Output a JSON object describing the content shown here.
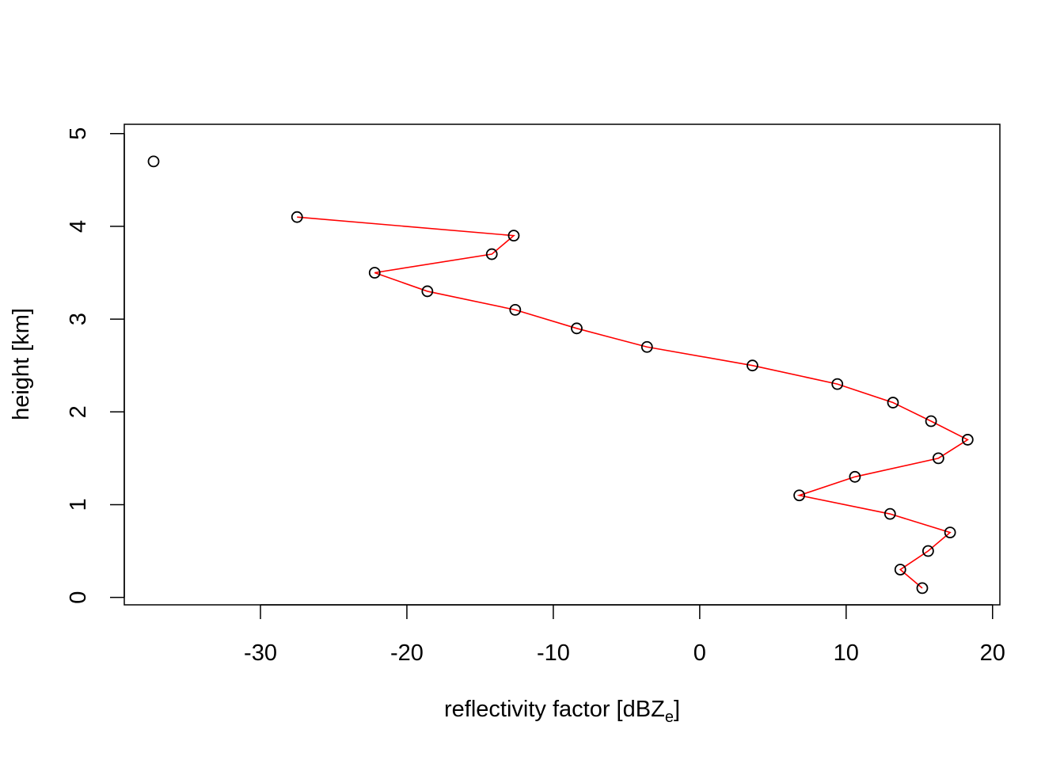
{
  "chart_data": {
    "type": "scatter",
    "xlabel": "reflectivity factor [dBZ",
    "xlabel_subscript": "e",
    "xlabel_suffix": "]",
    "ylabel": "height [km]",
    "xlim": [
      -39.3,
      20.5
    ],
    "ylim": [
      -0.08,
      5.1
    ],
    "x_ticks": [
      -30,
      -20,
      -10,
      0,
      10,
      20
    ],
    "x_tick_labels": [
      "-30",
      "-20",
      "-10",
      "0",
      "10",
      "20"
    ],
    "y_ticks": [
      0,
      1,
      2,
      3,
      4,
      5
    ],
    "y_tick_labels": [
      "0",
      "1",
      "2",
      "3",
      "4",
      "5"
    ],
    "grid": false,
    "line_color": "#ff0000",
    "point_color": "#000000",
    "series": [
      {
        "points": [
          {
            "x": 15.2,
            "y": 0.1
          },
          {
            "x": 13.7,
            "y": 0.3
          },
          {
            "x": 15.6,
            "y": 0.5
          },
          {
            "x": 17.1,
            "y": 0.7
          },
          {
            "x": 13.0,
            "y": 0.9
          },
          {
            "x": 6.8,
            "y": 1.1
          },
          {
            "x": 10.6,
            "y": 1.3
          },
          {
            "x": 16.3,
            "y": 1.5
          },
          {
            "x": 18.3,
            "y": 1.7
          },
          {
            "x": 15.8,
            "y": 1.9
          },
          {
            "x": 13.2,
            "y": 2.1
          },
          {
            "x": 9.4,
            "y": 2.3
          },
          {
            "x": 3.6,
            "y": 2.5
          },
          {
            "x": -3.6,
            "y": 2.7
          },
          {
            "x": -8.4,
            "y": 2.9
          },
          {
            "x": -12.6,
            "y": 3.1
          },
          {
            "x": -18.6,
            "y": 3.3
          },
          {
            "x": -22.2,
            "y": 3.5
          },
          {
            "x": -14.2,
            "y": 3.7
          },
          {
            "x": -12.7,
            "y": 3.9
          },
          {
            "x": -27.5,
            "y": 4.1
          },
          {
            "x": -37.3,
            "y": 4.7
          }
        ],
        "connected_count": 21
      }
    ]
  }
}
